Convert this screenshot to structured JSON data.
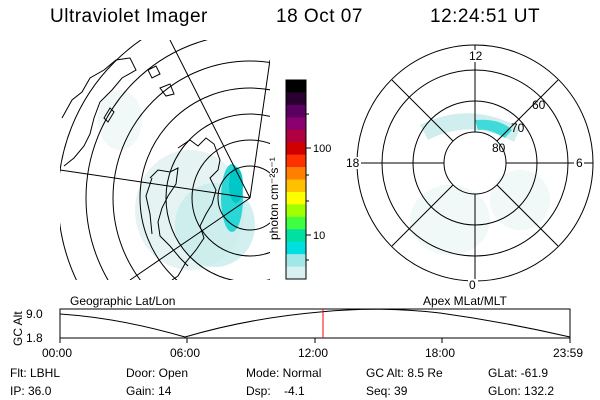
{
  "header": {
    "instrument": "Ultraviolet Imager",
    "date": "18 Oct 07",
    "time": "12:24:51 UT"
  },
  "left_panel": {
    "title": "Geographic Lat/Lon"
  },
  "right_panel": {
    "title": "Apex MLat/MLT",
    "mlt_labels": {
      "top": "12",
      "left": "18",
      "right": "6",
      "bottom": "0"
    },
    "lat_labels": [
      "60",
      "70",
      "80"
    ]
  },
  "colorbar": {
    "unit_label": "photon cm⁻²s⁻¹",
    "ticks": [
      "100",
      "10"
    ],
    "colors": [
      "#000000",
      "#2a0030",
      "#5a0060",
      "#8a0070",
      "#b00040",
      "#d00000",
      "#ff3000",
      "#ff8000",
      "#ffc000",
      "#ffff00",
      "#a0ff00",
      "#40ff40",
      "#00e0a0",
      "#00e0e0",
      "#a0e8e8",
      "#d8f0f0"
    ]
  },
  "timeline": {
    "ylabel": "GC Alt",
    "y_ticks": [
      "9.0",
      "1.8"
    ],
    "x_ticks": [
      "00:00",
      "06:00",
      "12:00",
      "18:00",
      "23:59"
    ],
    "current_marker_color": "#ff0000"
  },
  "footer": {
    "row1": {
      "filter": "Flt: LBHL",
      "door": "Door: Open",
      "mode": "Mode: Normal",
      "gcalt": "GC Alt: 8.5 Re",
      "glat": "GLat: -61.9"
    },
    "row2": {
      "ip": "IP: 36.0",
      "gain": "Gain: 14",
      "dsp": "Dsp:    -4.1",
      "seq": "Seq: 39",
      "glon": "GLon: 132.2"
    }
  }
}
